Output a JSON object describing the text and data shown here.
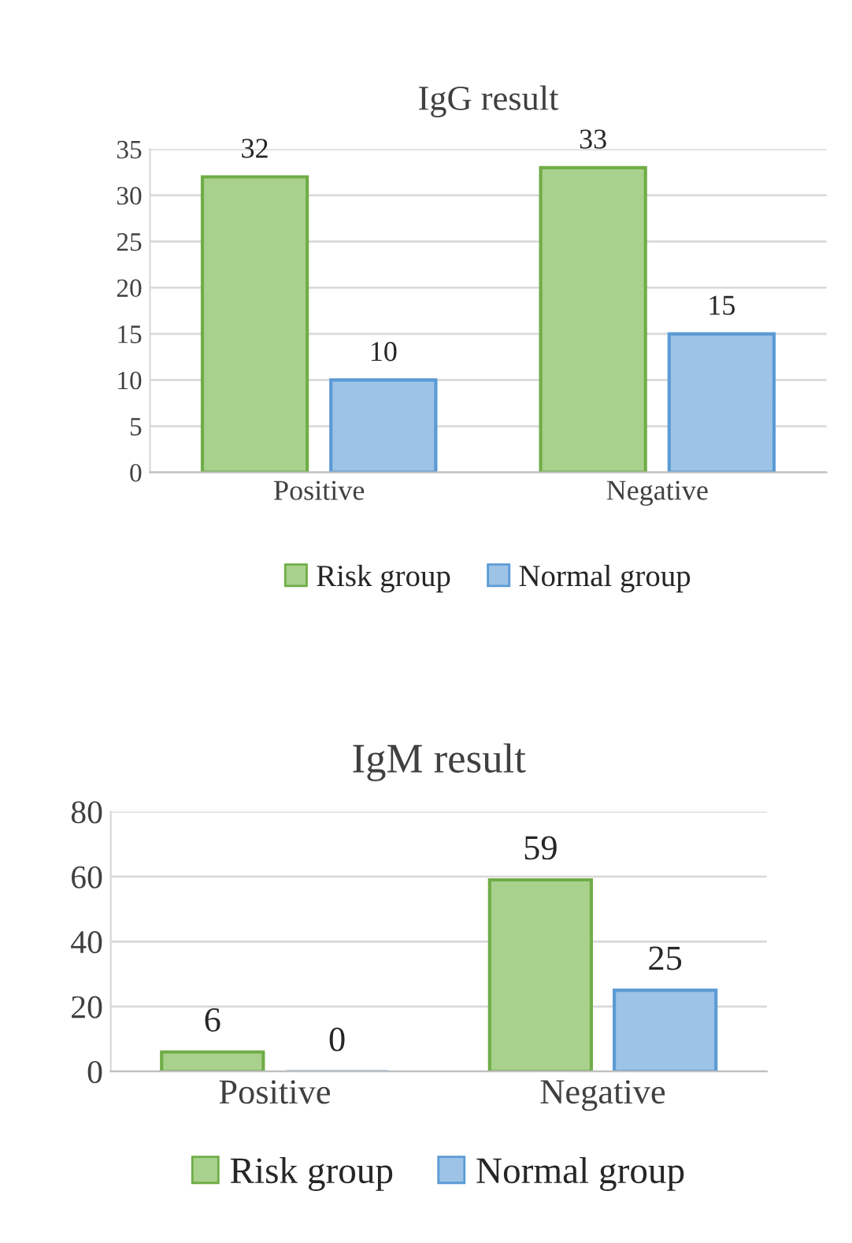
{
  "chart_data": [
    {
      "type": "bar",
      "title": "IgG result",
      "categories": [
        "Positive",
        "Negative"
      ],
      "series": [
        {
          "name": "Risk group",
          "color": "#a9d18e",
          "values": [
            32,
            33
          ]
        },
        {
          "name": "Normal group",
          "color": "#9dc3e6",
          "values": [
            10,
            15
          ]
        }
      ],
      "ylim": [
        0,
        35
      ],
      "yticks": [
        0,
        5,
        10,
        15,
        20,
        25,
        30,
        35
      ],
      "grid": "y",
      "legend": "bottom",
      "data_labels": true
    },
    {
      "type": "bar",
      "title": "IgM result",
      "categories": [
        "Positive",
        "Negative"
      ],
      "series": [
        {
          "name": "Risk group",
          "color": "#a9d18e",
          "values": [
            6,
            59
          ]
        },
        {
          "name": "Normal group",
          "color": "#9dc3e6",
          "values": [
            0,
            25
          ]
        }
      ],
      "ylim": [
        0,
        80
      ],
      "yticks": [
        0,
        20,
        40,
        60,
        80
      ],
      "grid": "y",
      "legend": "bottom",
      "data_labels": true
    }
  ]
}
